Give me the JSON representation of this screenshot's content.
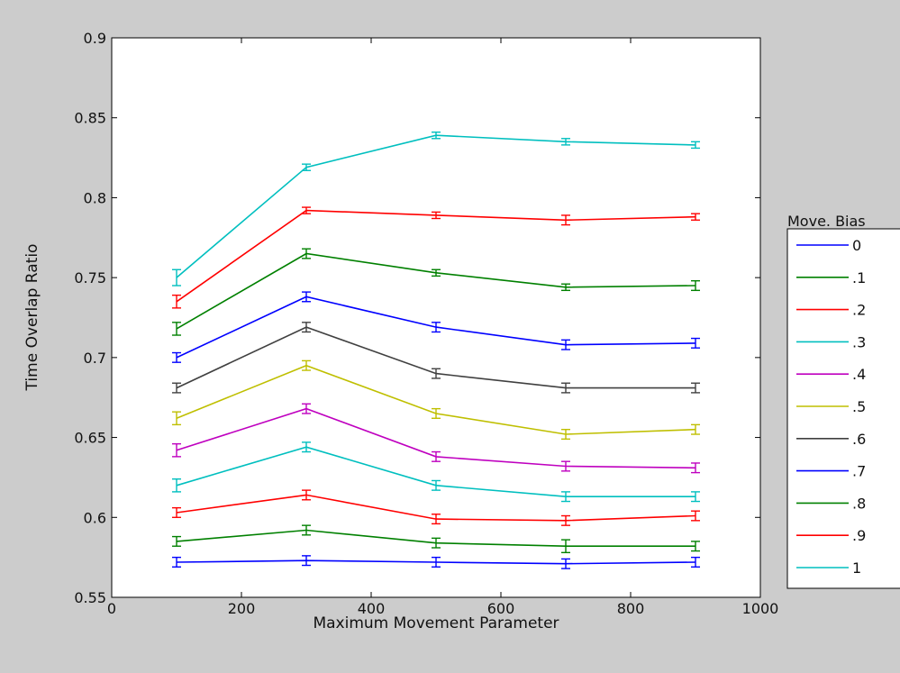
{
  "chart_data": {
    "type": "line",
    "xlabel": "Maximum Movement Parameter",
    "ylabel": "Time Overlap Ratio",
    "xlim": [
      0,
      1000
    ],
    "ylim": [
      0.55,
      0.9
    ],
    "xticks": [
      "0",
      "200",
      "400",
      "600",
      "800",
      "1000"
    ],
    "yticks": [
      "0.55",
      "0.6",
      "0.65",
      "0.7",
      "0.75",
      "0.8",
      "0.85",
      "0.9"
    ],
    "grid": false,
    "legend_title": "Move. Bias",
    "legend_position": "right, outside plot",
    "x": [
      100,
      300,
      500,
      700,
      900
    ],
    "series": [
      {
        "name": "0",
        "color": "#0000ff",
        "values": [
          0.572,
          0.573,
          0.572,
          0.571,
          0.572
        ],
        "errors": [
          0.003,
          0.003,
          0.003,
          0.003,
          0.003
        ]
      },
      {
        "name": ".1",
        "color": "#008000",
        "values": [
          0.585,
          0.592,
          0.584,
          0.582,
          0.582
        ],
        "errors": [
          0.003,
          0.003,
          0.003,
          0.004,
          0.003
        ]
      },
      {
        "name": ".2",
        "color": "#ff0000",
        "values": [
          0.603,
          0.614,
          0.599,
          0.598,
          0.601
        ],
        "errors": [
          0.003,
          0.003,
          0.003,
          0.003,
          0.003
        ]
      },
      {
        "name": ".3",
        "color": "#00bfbf",
        "values": [
          0.62,
          0.644,
          0.62,
          0.613,
          0.613
        ],
        "errors": [
          0.004,
          0.003,
          0.003,
          0.003,
          0.003
        ]
      },
      {
        "name": ".4",
        "color": "#bf00bf",
        "values": [
          0.642,
          0.668,
          0.638,
          0.632,
          0.631
        ],
        "errors": [
          0.004,
          0.003,
          0.003,
          0.003,
          0.003
        ]
      },
      {
        "name": ".5",
        "color": "#bfbf00",
        "values": [
          0.662,
          0.695,
          0.665,
          0.652,
          0.655
        ],
        "errors": [
          0.004,
          0.003,
          0.003,
          0.003,
          0.003
        ]
      },
      {
        "name": ".6",
        "color": "#404040",
        "values": [
          0.681,
          0.719,
          0.69,
          0.681,
          0.681
        ],
        "errors": [
          0.003,
          0.003,
          0.003,
          0.003,
          0.003
        ]
      },
      {
        "name": ".7",
        "color": "#0000ff",
        "values": [
          0.7,
          0.738,
          0.719,
          0.708,
          0.709
        ],
        "errors": [
          0.003,
          0.003,
          0.003,
          0.003,
          0.003
        ]
      },
      {
        "name": ".8",
        "color": "#008000",
        "values": [
          0.718,
          0.765,
          0.753,
          0.744,
          0.745
        ],
        "errors": [
          0.004,
          0.003,
          0.002,
          0.002,
          0.003
        ]
      },
      {
        "name": ".9",
        "color": "#ff0000",
        "values": [
          0.735,
          0.792,
          0.789,
          0.786,
          0.788
        ],
        "errors": [
          0.004,
          0.002,
          0.002,
          0.003,
          0.002
        ]
      },
      {
        "name": "1",
        "color": "#00bfbf",
        "values": [
          0.75,
          0.819,
          0.839,
          0.835,
          0.833
        ],
        "errors": [
          0.005,
          0.002,
          0.002,
          0.002,
          0.002
        ]
      }
    ]
  }
}
